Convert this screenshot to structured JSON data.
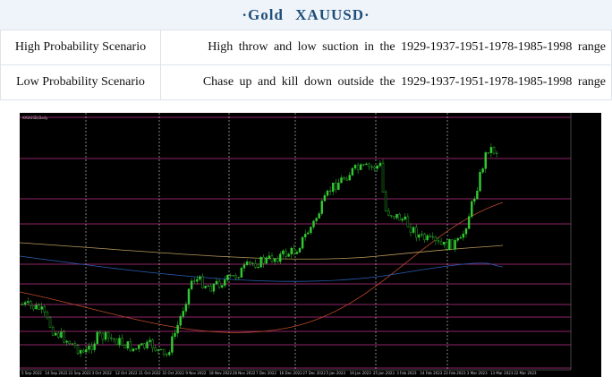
{
  "header": {
    "title": "·Gold XAUUSD·"
  },
  "table": {
    "rows": [
      [
        "High Probability Scenario",
        "High throw and low suction in the 1929-1937-1951-1978-1985-1998 range"
      ],
      [
        "Low Probability Scenario",
        "Chase up and kill down outside the 1929-1937-1951-1978-1985-1998 range"
      ]
    ]
  },
  "chart_image": {
    "label": "XAUUSD,Daily",
    "dates": [
      "5 Sep 2022",
      "14 Sep 2022",
      "23 Sep 2022",
      "3 Oct 2022",
      "12 Oct 2022",
      "21 Oct 2022",
      "31 Oct 2022",
      "9 Nov 2022",
      "18 Nov 2022",
      "28 Nov 2022",
      "7 Dec 2022",
      "16 Dec 2022",
      "27 Dec 2022",
      "5 Jan 2023",
      "16 Jan 2023",
      "25 Jan 2023",
      "3 Feb 2023",
      "14 Feb 2023",
      "23 Feb 2023",
      "3 Mar 2023",
      "13 Mar 2023",
      "22 Mar 2023"
    ]
  }
}
